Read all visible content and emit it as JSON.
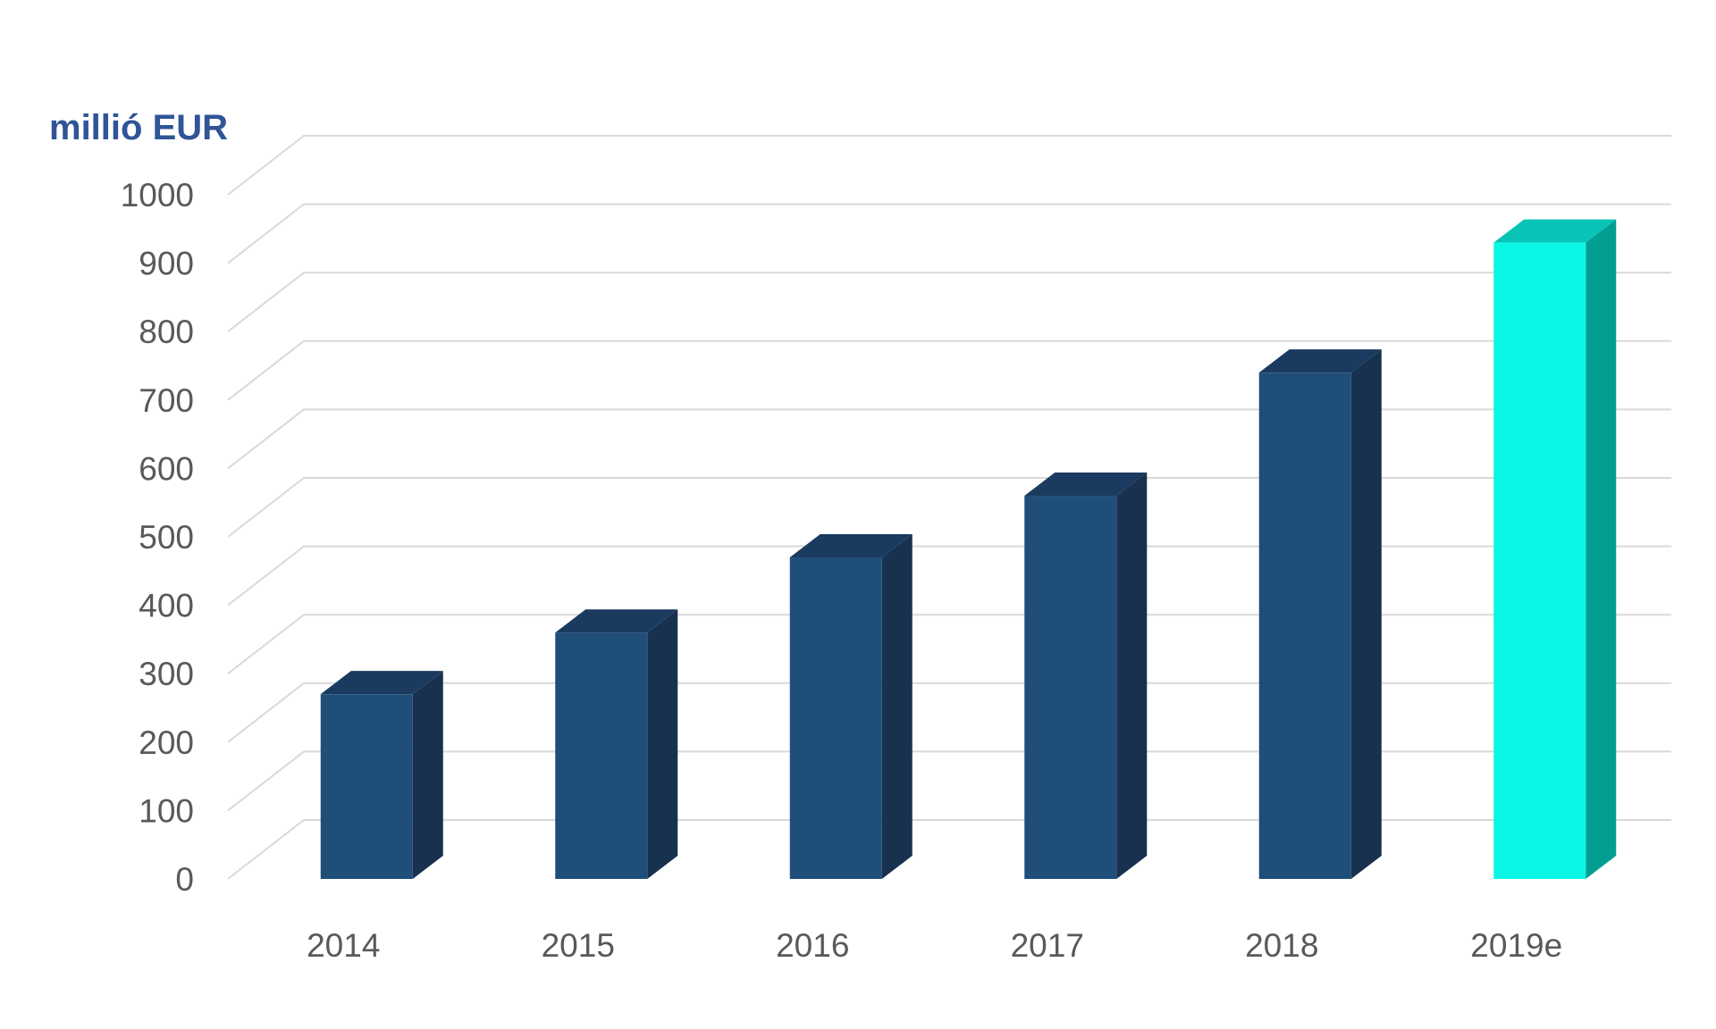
{
  "chart_data": {
    "type": "bar",
    "style": "3d-column",
    "unit_label": "millió EUR",
    "title": "",
    "xlabel": "",
    "ylabel": "",
    "categories": [
      "2014",
      "2015",
      "2016",
      "2017",
      "2018",
      "2019e"
    ],
    "values": [
      270,
      360,
      470,
      560,
      740,
      930
    ],
    "ylim": [
      0,
      1000
    ],
    "yticks": [
      "0",
      "100",
      "200",
      "300",
      "400",
      "500",
      "600",
      "700",
      "800",
      "900",
      "1000"
    ],
    "grid": true,
    "legend": "none",
    "colors": {
      "bar_front": "#1F4E79",
      "bar_side": "#17314F",
      "bar_top": "#1A3B5F",
      "highlight_front": "#0AF7E6",
      "highlight_side": "#039E92",
      "highlight_top": "#08C4B6",
      "gridline": "#D9D9D9",
      "tick_text": "#595959",
      "unit_text": "#2F5597"
    },
    "highlighted_category": "2019e"
  }
}
